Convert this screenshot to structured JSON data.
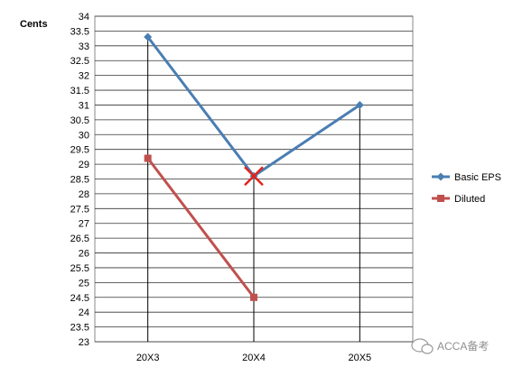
{
  "chart_data": {
    "type": "line",
    "title": "",
    "xlabel": "",
    "ylabel": "Cents",
    "categories": [
      "20X3",
      "20X4",
      "20X5"
    ],
    "ylim": [
      23,
      34
    ],
    "ystep": 0.5,
    "grid": "horizontal",
    "legend_position": "right",
    "series": [
      {
        "name": "Basic EPS",
        "values": [
          33.3,
          28.6,
          31.0
        ],
        "color": "#4a7eb3",
        "marker": "diamond"
      },
      {
        "name": "Diluted",
        "values": [
          29.2,
          24.5,
          null
        ],
        "color": "#c0504d",
        "marker": "square"
      }
    ],
    "annotations": [
      {
        "type": "cross",
        "category": "20X4",
        "value": 28.6,
        "color": "#e3231b"
      }
    ],
    "drop_lines": [
      {
        "category": "20X3",
        "top": 33.3
      },
      {
        "category": "20X4",
        "top": 28.6
      },
      {
        "category": "20X5",
        "top": 31.0
      }
    ]
  },
  "watermark": {
    "text": "ACCA备考",
    "icon": "chat-bubble-icon"
  }
}
